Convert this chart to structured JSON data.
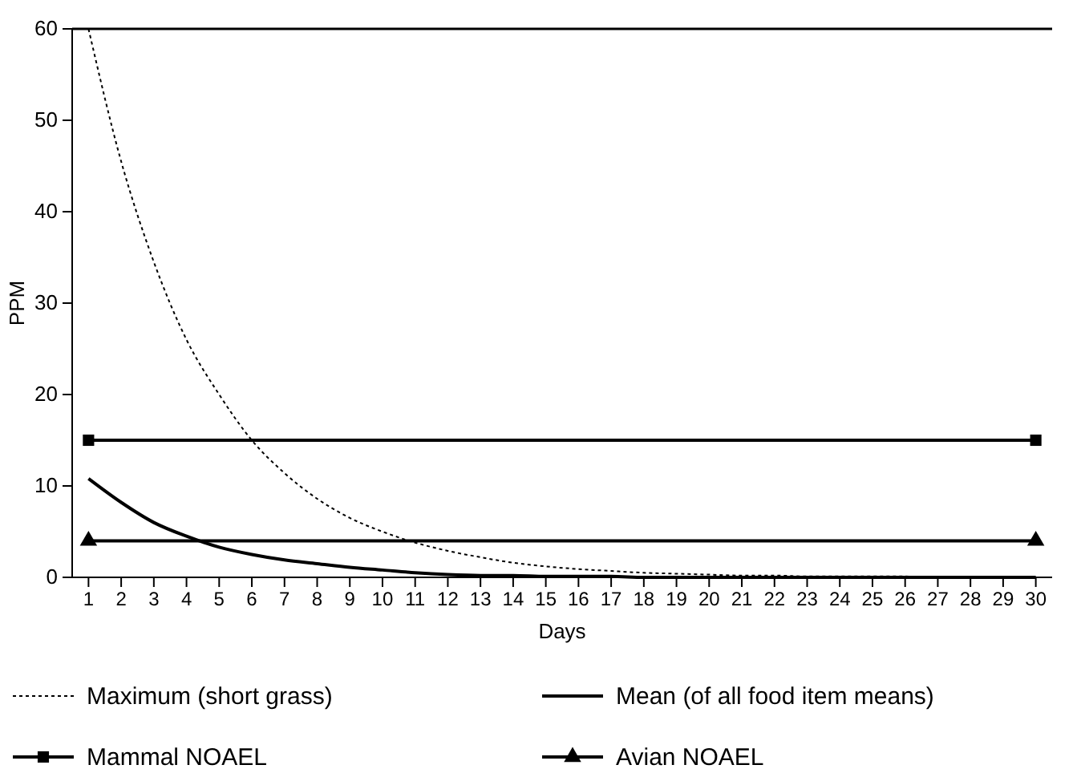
{
  "chart_data": {
    "type": "line",
    "xlabel": "Days",
    "ylabel": "PPM",
    "xlim": [
      0.5,
      30.5
    ],
    "xticks": [
      1,
      2,
      3,
      4,
      5,
      6,
      7,
      8,
      9,
      10,
      11,
      12,
      13,
      14,
      15,
      16,
      17,
      18,
      19,
      20,
      21,
      22,
      23,
      24,
      25,
      26,
      27,
      28,
      29,
      30
    ],
    "ylim": [
      0,
      60
    ],
    "yticks": [
      0,
      10,
      20,
      30,
      40,
      50,
      60
    ],
    "grid": false,
    "legend": "bottom",
    "series": [
      {
        "name": "Maximum (short grass)",
        "color": "#000000",
        "line_style": "dotted",
        "marker": "none",
        "x": [
          1,
          2,
          3,
          4,
          5,
          6,
          7,
          8,
          9,
          10,
          11,
          12,
          13,
          14,
          15,
          16,
          17,
          18,
          19,
          20,
          21,
          22,
          23,
          24,
          25,
          26,
          27,
          28,
          29,
          30
        ],
        "values": [
          60,
          45.5,
          34.5,
          26,
          20,
          15,
          11.4,
          8.6,
          6.5,
          5,
          3.8,
          2.9,
          2.2,
          1.6,
          1.2,
          0.9,
          0.7,
          0.5,
          0.4,
          0.3,
          0.2,
          0.2,
          0.1,
          0.1,
          0.1,
          0.1,
          0,
          0,
          0,
          0
        ]
      },
      {
        "name": "Mean (of all food item means)",
        "color": "#000000",
        "line_style": "solid",
        "marker": "none",
        "x": [
          1,
          2,
          3,
          4,
          5,
          6,
          7,
          8,
          9,
          10,
          11,
          12,
          13,
          14,
          15,
          16,
          17,
          18,
          19,
          20,
          21,
          22,
          23,
          24,
          25,
          26,
          27,
          28,
          29,
          30
        ],
        "values": [
          10.8,
          8.2,
          6,
          4.5,
          3.3,
          2.5,
          1.9,
          1.5,
          1.1,
          0.8,
          0.5,
          0.3,
          0.2,
          0.2,
          0.1,
          0.1,
          0.1,
          0,
          0,
          0,
          0,
          0,
          0,
          0,
          0,
          0,
          0,
          0,
          0,
          0
        ]
      },
      {
        "name": "Mammal NOAEL",
        "color": "#000000",
        "line_style": "solid",
        "marker": "square",
        "x": [
          1,
          30
        ],
        "values": [
          15,
          15
        ]
      },
      {
        "name": "Avian NOAEL",
        "color": "#000000",
        "line_style": "solid",
        "marker": "triangle",
        "x": [
          1,
          30
        ],
        "values": [
          4,
          4
        ]
      }
    ]
  }
}
